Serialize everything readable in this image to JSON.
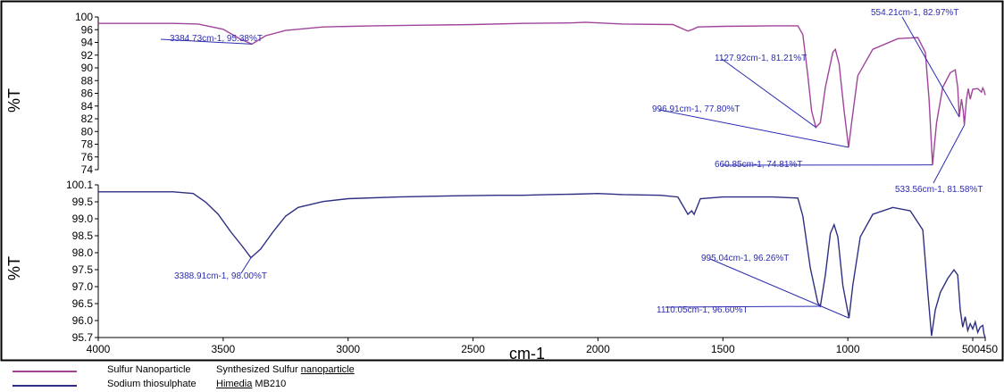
{
  "chart_data": {
    "type": "line",
    "xlabel": "cm-1",
    "x_range": [
      4000,
      450
    ],
    "x_ticks": [
      "4000",
      "3500",
      "3000",
      "2500",
      "2000",
      "1500",
      "1000",
      "500",
      "450"
    ],
    "panels": [
      {
        "ylabel": "%T",
        "y_range": [
          74,
          100
        ],
        "y_ticks": [
          "100",
          "96",
          "94",
          "92",
          "90",
          "88",
          "86",
          "84",
          "82",
          "80",
          "78",
          "76",
          "74"
        ],
        "series_name": "Sulfur Nanoparticle",
        "color": "#a0449a",
        "points": [
          [
            4000,
            98.9
          ],
          [
            3700,
            98.9
          ],
          [
            3600,
            98.8
          ],
          [
            3500,
            97.9
          ],
          [
            3430,
            96.2
          ],
          [
            3384.73,
            95.38
          ],
          [
            3330,
            96.8
          ],
          [
            3250,
            97.7
          ],
          [
            3100,
            98.3
          ],
          [
            2900,
            98.5
          ],
          [
            2700,
            98.6
          ],
          [
            2500,
            98.7
          ],
          [
            2300,
            98.9
          ],
          [
            2100,
            99.0
          ],
          [
            2050,
            99.1
          ],
          [
            1900,
            98.8
          ],
          [
            1700,
            98.7
          ],
          [
            1640,
            97.6
          ],
          [
            1620,
            97.9
          ],
          [
            1600,
            98.3
          ],
          [
            1500,
            98.4
          ],
          [
            1300,
            98.5
          ],
          [
            1200,
            98.5
          ],
          [
            1180,
            97.0
          ],
          [
            1160,
            90.0
          ],
          [
            1145,
            84.0
          ],
          [
            1127.92,
            81.21
          ],
          [
            1110,
            82.0
          ],
          [
            1090,
            88.0
          ],
          [
            1060,
            94.0
          ],
          [
            1050,
            94.5
          ],
          [
            1035,
            92.0
          ],
          [
            1015,
            84.0
          ],
          [
            996.91,
            77.8
          ],
          [
            985,
            82.0
          ],
          [
            960,
            90.0
          ],
          [
            900,
            94.5
          ],
          [
            800,
            96.3
          ],
          [
            720,
            96.5
          ],
          [
            690,
            94.0
          ],
          [
            675,
            86.0
          ],
          [
            660.85,
            74.81
          ],
          [
            645,
            82.0
          ],
          [
            620,
            88.0
          ],
          [
            590,
            90.5
          ],
          [
            570,
            91.0
          ],
          [
            560,
            88.0
          ],
          [
            554.21,
            82.97
          ],
          [
            545,
            86.0
          ],
          [
            538,
            84.0
          ],
          [
            533.56,
            81.58
          ],
          [
            525,
            86.0
          ],
          [
            518,
            87.8
          ],
          [
            510,
            86.0
          ],
          [
            500,
            87.7
          ],
          [
            480,
            87.8
          ],
          [
            465,
            87.2
          ],
          [
            460,
            87.9
          ],
          [
            455,
            87.5
          ],
          [
            450,
            86.7
          ]
        ],
        "annotations": [
          {
            "x": 3384.73,
            "y": 95.38,
            "text": "3384.73cm-1, 95.38%T"
          },
          {
            "x": 1127.92,
            "y": 81.21,
            "text": "1127.92cm-1, 81.21%T"
          },
          {
            "x": 996.91,
            "y": 77.8,
            "text": "996.91cm-1, 77.80%T"
          },
          {
            "x": 660.85,
            "y": 74.81,
            "text": "660.85cm-1, 74.81%T"
          },
          {
            "x": 554.21,
            "y": 82.97,
            "text": "554.21cm-1, 82.97%T"
          },
          {
            "x": 533.56,
            "y": 81.58,
            "text": "533.56cm-1, 81.58%T"
          }
        ]
      },
      {
        "ylabel": "%T",
        "y_range": [
          95.7,
          100.1
        ],
        "y_ticks": [
          "100.1",
          "99.5",
          "99.0",
          "98.5",
          "98.0",
          "97.5",
          "97.0",
          "96.5",
          "96.0",
          "95.7"
        ],
        "series_name": "Sodium thiosulphate",
        "color": "#2e2f82",
        "points": [
          [
            4000,
            99.9
          ],
          [
            3700,
            99.9
          ],
          [
            3620,
            99.85
          ],
          [
            3570,
            99.6
          ],
          [
            3520,
            99.25
          ],
          [
            3470,
            98.75
          ],
          [
            3420,
            98.3
          ],
          [
            3388.91,
            98.0
          ],
          [
            3350,
            98.25
          ],
          [
            3300,
            98.75
          ],
          [
            3250,
            99.2
          ],
          [
            3200,
            99.45
          ],
          [
            3100,
            99.62
          ],
          [
            3000,
            99.7
          ],
          [
            2800,
            99.75
          ],
          [
            2600,
            99.78
          ],
          [
            2400,
            99.8
          ],
          [
            2300,
            99.8
          ],
          [
            2200,
            99.82
          ],
          [
            2100,
            99.83
          ],
          [
            2000,
            99.85
          ],
          [
            1900,
            99.82
          ],
          [
            1750,
            99.8
          ],
          [
            1680,
            99.75
          ],
          [
            1640,
            99.25
          ],
          [
            1625,
            99.35
          ],
          [
            1615,
            99.25
          ],
          [
            1590,
            99.7
          ],
          [
            1500,
            99.75
          ],
          [
            1300,
            99.75
          ],
          [
            1200,
            99.72
          ],
          [
            1180,
            99.2
          ],
          [
            1150,
            97.7
          ],
          [
            1120,
            96.7
          ],
          [
            1110.05,
            96.6
          ],
          [
            1090,
            97.5
          ],
          [
            1070,
            98.7
          ],
          [
            1055,
            98.95
          ],
          [
            1040,
            98.6
          ],
          [
            1020,
            97.2
          ],
          [
            995.04,
            96.26
          ],
          [
            980,
            97.2
          ],
          [
            950,
            98.6
          ],
          [
            900,
            99.25
          ],
          [
            820,
            99.45
          ],
          [
            750,
            99.35
          ],
          [
            700,
            98.8
          ],
          [
            680,
            97.0
          ],
          [
            665,
            95.75
          ],
          [
            650,
            96.5
          ],
          [
            630,
            97.0
          ],
          [
            600,
            97.4
          ],
          [
            575,
            97.65
          ],
          [
            560,
            97.5
          ],
          [
            550,
            96.5
          ],
          [
            540,
            96.0
          ],
          [
            530,
            96.3
          ],
          [
            520,
            95.9
          ],
          [
            510,
            96.1
          ],
          [
            500,
            95.95
          ],
          [
            490,
            96.15
          ],
          [
            480,
            95.85
          ],
          [
            470,
            96.0
          ],
          [
            460,
            96.05
          ],
          [
            455,
            95.8
          ],
          [
            450,
            95.7
          ]
        ],
        "annotations": [
          {
            "x": 3388.91,
            "y": 98.0,
            "text": "3388.91cm-1, 98.00%T"
          },
          {
            "x": 995.04,
            "y": 96.26,
            "text": "995.04cm-1, 96.26%T"
          },
          {
            "x": 1110.05,
            "y": 96.6,
            "text": "1110.05cm-1, 96.60%T"
          }
        ]
      }
    ]
  },
  "legend": [
    {
      "name": "Sulfur Nanoparticle",
      "desc_plain": "Synthesized Sulfur ",
      "desc_underlined": "nanoparticle",
      "color": "#a0449a"
    },
    {
      "name": "Sodium thiosulphate",
      "desc_plain": "",
      "desc_underlined": "Himedia",
      "desc_tail": " MB210",
      "color": "#2e2f82"
    }
  ],
  "annotation_color": "#2b2bb0"
}
